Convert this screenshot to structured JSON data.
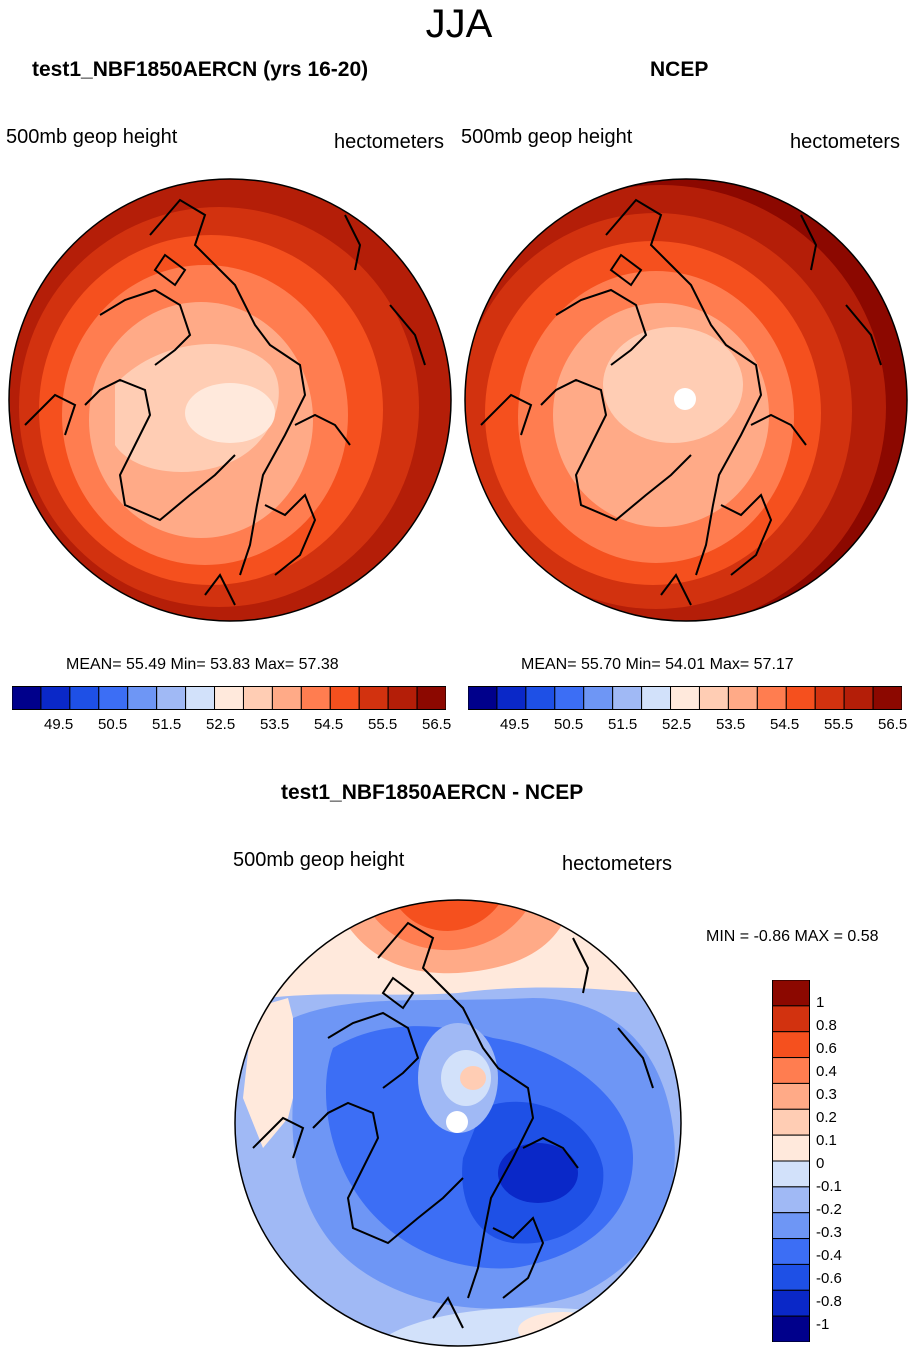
{
  "title": "JJA",
  "panels": {
    "left": {
      "title": "test1_NBF1850AERCN (yrs 16-20)",
      "variable": "500mb geop height",
      "units": "hectometers",
      "stats": {
        "mean_label": "MEAN=",
        "mean": "55.49",
        "min_label": "Min=",
        "min": "53.83",
        "max_label": "Max=",
        "max": "57.38"
      }
    },
    "right": {
      "title": "NCEP",
      "variable": "500mb geop height",
      "units": "hectometers",
      "stats": {
        "mean_label": "MEAN=",
        "mean": "55.70",
        "min_label": "Min=",
        "min": "54.01",
        "max_label": "Max=",
        "max": "57.17"
      }
    },
    "diff": {
      "title": "test1_NBF1850AERCN - NCEP",
      "variable": "500mb geop height",
      "units": "hectometers",
      "minmax": "MIN =  -0.86 MAX =   0.58"
    }
  },
  "colors": {
    "height_scale": [
      "#00008b",
      "#0a28c8",
      "#1e50e6",
      "#3c6ef5",
      "#6e96f5",
      "#a0b9f5",
      "#d2e1fa",
      "#ffe9dc",
      "#ffcdb4",
      "#ffaa87",
      "#ff7d50",
      "#f5501e",
      "#d2320f",
      "#b41e08",
      "#8c0800"
    ],
    "diff_scale": [
      "#00008b",
      "#0a28c8",
      "#1e50e6",
      "#3c6ef5",
      "#6e96f5",
      "#a0b9f5",
      "#d2e1fa",
      "#ffe9dc",
      "#ffcdb4",
      "#ffaa87",
      "#ff7d50",
      "#f5501e",
      "#d2320f",
      "#8c0800"
    ]
  },
  "chart_data": [
    {
      "type": "heatmap",
      "title": "test1_NBF1850AERCN (yrs 16-20)",
      "projection": "north polar stereographic",
      "variable": "500mb geop height",
      "units": "hectometers",
      "mean": 55.49,
      "min": 53.83,
      "max": 57.38,
      "colorbar_ticks": [
        "49.5",
        "50.5",
        "51.5",
        "52.5",
        "53.5",
        "54.5",
        "55.5",
        "56.5"
      ],
      "contour_levels": [
        49.5,
        50,
        50.5,
        51,
        51.5,
        52,
        52.5,
        53,
        53.5,
        54,
        54.5,
        55,
        55.5,
        56,
        56.5
      ]
    },
    {
      "type": "heatmap",
      "title": "NCEP",
      "projection": "north polar stereographic",
      "variable": "500mb geop height",
      "units": "hectometers",
      "mean": 55.7,
      "min": 54.01,
      "max": 57.17,
      "colorbar_ticks": [
        "49.5",
        "50.5",
        "51.5",
        "52.5",
        "53.5",
        "54.5",
        "55.5",
        "56.5"
      ],
      "contour_levels": [
        49.5,
        50,
        50.5,
        51,
        51.5,
        52,
        52.5,
        53,
        53.5,
        54,
        54.5,
        55,
        55.5,
        56,
        56.5
      ]
    },
    {
      "type": "heatmap",
      "title": "test1_NBF1850AERCN - NCEP",
      "projection": "north polar stereographic",
      "variable": "500mb geop height",
      "units": "hectometers",
      "min": -0.86,
      "max": 0.58,
      "colorbar_ticks": [
        "-1",
        "-0.8",
        "-0.6",
        "-0.4",
        "-0.3",
        "-0.2",
        "-0.1",
        "0",
        "0.1",
        "0.2",
        "0.3",
        "0.4",
        "0.6",
        "0.8",
        "1"
      ],
      "contour_levels": [
        -1,
        -0.8,
        -0.6,
        -0.4,
        -0.3,
        -0.2,
        -0.1,
        0,
        0.1,
        0.2,
        0.3,
        0.4,
        0.6,
        0.8,
        1
      ]
    }
  ]
}
